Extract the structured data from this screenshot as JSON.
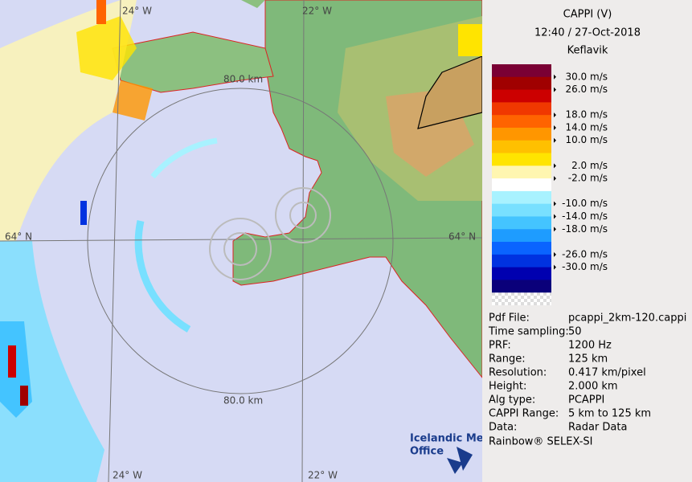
{
  "map": {
    "grid_labels": {
      "top_24w": "24° W",
      "top_22w": "22° W",
      "top_range": "80.0 km",
      "left_64n": "64° N",
      "right_64n": "64° N",
      "bottom_range": "80.0 km",
      "bottom_24w": "24° W",
      "bottom_22w": "22° W"
    },
    "logo": {
      "line1": "Icelandic Met",
      "line2": "Office"
    }
  },
  "sidebar": {
    "title": "CAPPI (V)",
    "datetime": "12:40 / 27-Oct-2018",
    "site": "Keflavik",
    "legend": {
      "bands": [
        "#7a0034",
        "#a00000",
        "#cc0000",
        "#f03800",
        "#ff6400",
        "#ff9600",
        "#ffc000",
        "#ffe400",
        "#fff6b0",
        "#ffffff",
        "#a8f2ff",
        "#78e0ff",
        "#44c4ff",
        "#1e9cff",
        "#0a64ff",
        "#0032e0",
        "#0000b0",
        "#0a007a"
      ],
      "labels": [
        "30.0 m/s",
        "26.0 m/s",
        "18.0 m/s",
        "14.0 m/s",
        "10.0 m/s",
        "2.0 m/s",
        "-2.0 m/s",
        "-10.0 m/s",
        "-14.0 m/s",
        "-18.0 m/s",
        "-26.0 m/s",
        "-30.0 m/s"
      ]
    },
    "info": [
      [
        "Pdf File:",
        "pcappi_2km-120.cappi"
      ],
      [
        "Time sampling:",
        "50"
      ],
      [
        "PRF:",
        "1200 Hz"
      ],
      [
        "Range:",
        "125 km"
      ],
      [
        "Resolution:",
        "0.417 km/pixel"
      ],
      [
        "Height:",
        "2.000 km"
      ],
      [
        "Alg type:",
        "PCAPPI"
      ],
      [
        "CAPPI Range:",
        "5 km to 125 km"
      ],
      [
        "Data:",
        "Radar Data"
      ]
    ],
    "footer": "Rainbow® SELEX-SI"
  }
}
